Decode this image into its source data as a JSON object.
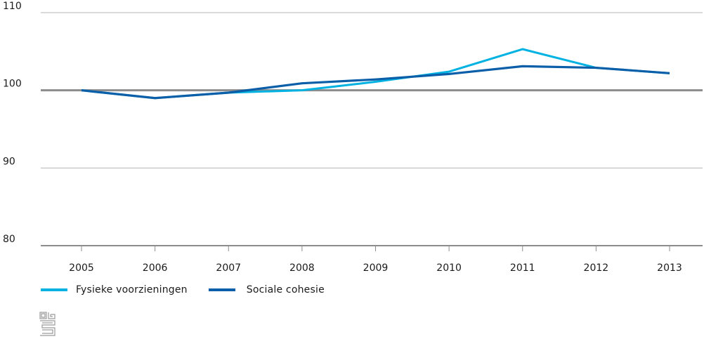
{
  "chart_data": {
    "type": "line",
    "categories": [
      "2005",
      "2006",
      "2007",
      "2008",
      "2009",
      "2010",
      "2011",
      "2012",
      "2013"
    ],
    "series": [
      {
        "name": "Fysieke voorzieningen",
        "color": "#00b2e2",
        "values": [
          100,
          99.0,
          99.7,
          100.0,
          101.1,
          102.4,
          105.3,
          102.9,
          102.2
        ]
      },
      {
        "name": "Sociale cohesie",
        "color": "#0b5ea8",
        "values": [
          100,
          99.0,
          99.7,
          100.9,
          101.4,
          102.1,
          103.1,
          102.9,
          102.2
        ]
      }
    ],
    "yticks": [
      80,
      90,
      100,
      110
    ],
    "ylim": [
      80,
      110
    ],
    "reference_line": 100,
    "grid": "horizontal",
    "legend_position": "bottom-left"
  },
  "logo_icon": "cbs-logo-icon"
}
